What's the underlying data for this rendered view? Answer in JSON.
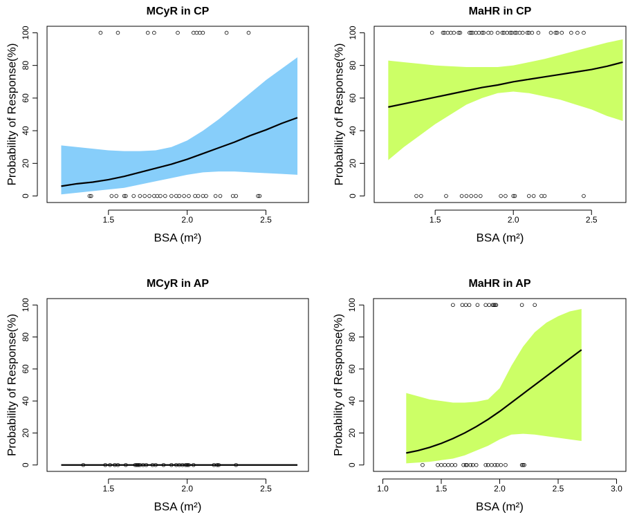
{
  "chart_data": [
    {
      "type": "line",
      "title": "MCyR in CP",
      "xlabel": "BSA (m²)",
      "ylabel": "Probability of Response(%)",
      "xlim": [
        1.11,
        2.77
      ],
      "ylim": [
        -4,
        104
      ],
      "xticks": [
        1.5,
        {
          "value": 2,
          "label": "2.0"
        },
        2.5
      ],
      "yticks": [
        0,
        20,
        40,
        60,
        80,
        100
      ],
      "band_color": "#87cefa",
      "line_color": "#000000",
      "x": [
        1.2,
        1.3,
        1.4,
        1.5,
        1.6,
        1.7,
        1.8,
        1.9,
        2.0,
        2.1,
        2.2,
        2.3,
        2.4,
        2.5,
        2.6,
        2.7
      ],
      "fit": [
        6,
        7.5,
        8.5,
        10,
        12,
        14.5,
        17,
        19.5,
        22.5,
        26,
        29.5,
        33,
        37,
        40.5,
        44.5,
        48
      ],
      "lower": [
        1,
        2,
        3,
        4,
        5,
        7,
        9,
        11,
        13,
        14.5,
        15,
        15,
        14.5,
        14,
        13.5,
        13
      ],
      "upper": [
        31,
        30,
        29,
        28,
        27.5,
        27.5,
        28,
        30,
        34,
        40,
        47,
        55,
        63,
        71,
        78,
        85
      ],
      "points_x": [
        1.45,
        1.56,
        1.75,
        1.79,
        1.94,
        2.04,
        2.06,
        2.08,
        2.1,
        2.25,
        2.39,
        1.38,
        1.39,
        1.52,
        1.55,
        1.6,
        1.61,
        1.66,
        1.7,
        1.73,
        1.76,
        1.79,
        1.81,
        1.83,
        1.86,
        1.9,
        1.93,
        1.95,
        1.98,
        2.01,
        2.05,
        2.07,
        2.1,
        2.12,
        2.18,
        2.21,
        2.29,
        2.31,
        2.45,
        2.46
      ],
      "points_y": [
        100,
        100,
        100,
        100,
        100,
        100,
        100,
        100,
        100,
        100,
        100,
        0,
        0,
        0,
        0,
        0,
        0,
        0,
        0,
        0,
        0,
        0,
        0,
        0,
        0,
        0,
        0,
        0,
        0,
        0,
        0,
        0,
        0,
        0,
        0,
        0,
        0,
        0,
        0,
        0
      ]
    },
    {
      "type": "line",
      "title": "MaHR in CP",
      "xlabel": "BSA (m²)",
      "ylabel": "Probability of Response(%)",
      "xlim": [
        1.11,
        2.72
      ],
      "ylim": [
        -4,
        104
      ],
      "xticks": [
        1.5,
        {
          "value": 2,
          "label": "2.0"
        },
        2.5
      ],
      "yticks": [
        0,
        20,
        40,
        60,
        80,
        100
      ],
      "band_color": "#ccff66",
      "line_color": "#000000",
      "x": [
        1.2,
        1.3,
        1.4,
        1.5,
        1.6,
        1.7,
        1.8,
        1.9,
        2.0,
        2.1,
        2.2,
        2.3,
        2.4,
        2.5,
        2.6,
        2.7
      ],
      "fit": [
        54.5,
        56.5,
        58.5,
        60.5,
        62.5,
        64.5,
        66.5,
        68,
        70,
        71.5,
        73,
        74.5,
        76,
        77.5,
        79.5,
        82
      ],
      "lower": [
        22,
        30,
        37,
        44,
        50,
        56,
        60,
        63,
        64,
        63,
        61,
        59,
        56,
        53,
        49,
        46
      ],
      "upper": [
        83,
        82,
        81,
        80,
        79.5,
        79,
        79,
        79,
        80,
        82,
        84,
        86.5,
        89,
        91.5,
        94,
        96
      ],
      "points_x": [
        1.48,
        1.55,
        1.56,
        1.58,
        1.6,
        1.62,
        1.65,
        1.66,
        1.72,
        1.73,
        1.74,
        1.76,
        1.78,
        1.8,
        1.81,
        1.84,
        1.86,
        1.9,
        1.93,
        1.94,
        1.96,
        1.98,
        1.99,
        2.01,
        2.02,
        2.04,
        2.06,
        2.09,
        2.1,
        2.12,
        2.16,
        2.24,
        2.27,
        2.28,
        2.31,
        2.37,
        2.41,
        2.45,
        1.38,
        1.41,
        1.57,
        1.67,
        1.7,
        1.73,
        1.76,
        1.79,
        1.92,
        1.95,
        2.0,
        2.01,
        2.1,
        2.13,
        2.18,
        2.2,
        2.45
      ],
      "points_y": [
        100,
        100,
        100,
        100,
        100,
        100,
        100,
        100,
        100,
        100,
        100,
        100,
        100,
        100,
        100,
        100,
        100,
        100,
        100,
        100,
        100,
        100,
        100,
        100,
        100,
        100,
        100,
        100,
        100,
        100,
        100,
        100,
        100,
        100,
        100,
        100,
        100,
        100,
        0,
        0,
        0,
        0,
        0,
        0,
        0,
        0,
        0,
        0,
        0,
        0,
        0,
        0,
        0,
        0,
        0
      ]
    },
    {
      "type": "line",
      "title": "MCyR in AP",
      "xlabel": "BSA (m²)",
      "ylabel": "Probability of Response(%)",
      "xlim": [
        1.11,
        2.77
      ],
      "ylim": [
        -4,
        104
      ],
      "xticks": [
        1.5,
        {
          "value": 2,
          "label": "2.0"
        },
        2.5
      ],
      "yticks": [
        0,
        20,
        40,
        60,
        80,
        100
      ],
      "line_color": "#000000",
      "x": [
        1.2,
        1.3,
        1.4,
        1.5,
        1.6,
        1.7,
        1.8,
        1.9,
        2.0,
        2.1,
        2.2,
        2.3,
        2.4,
        2.5,
        2.6,
        2.7
      ],
      "fit": [
        0,
        0,
        0,
        0,
        0,
        0,
        0,
        0,
        0,
        0,
        0,
        0,
        0,
        0,
        0,
        0
      ],
      "points_x": [
        1.34,
        1.48,
        1.51,
        1.54,
        1.56,
        1.61,
        1.67,
        1.68,
        1.69,
        1.7,
        1.72,
        1.74,
        1.78,
        1.8,
        1.85,
        1.9,
        1.93,
        1.95,
        1.97,
        1.99,
        2.0,
        2.01,
        2.04,
        2.17,
        2.19,
        2.2,
        2.31
      ],
      "points_y": [
        0,
        0,
        0,
        0,
        0,
        0,
        0,
        0,
        0,
        0,
        0,
        0,
        0,
        0,
        0,
        0,
        0,
        0,
        0,
        0,
        0,
        0,
        0,
        0,
        0,
        0,
        0
      ]
    },
    {
      "type": "line",
      "title": "MaHR in AP",
      "xlabel": "BSA (m²)",
      "ylabel": "Probability of Response(%)",
      "xlim": [
        0.92,
        3.08
      ],
      "ylim": [
        -4,
        104
      ],
      "xticks": [
        {
          "value": 1,
          "label": "1.0"
        },
        1.5,
        {
          "value": 2,
          "label": "2.0"
        },
        2.5,
        {
          "value": 3,
          "label": "3.0"
        }
      ],
      "yticks": [
        0,
        20,
        40,
        60,
        80,
        100
      ],
      "band_color": "#ccff66",
      "line_color": "#000000",
      "x": [
        1.2,
        1.3,
        1.4,
        1.5,
        1.6,
        1.7,
        1.8,
        1.9,
        2.0,
        2.1,
        2.2,
        2.3,
        2.4,
        2.5,
        2.6,
        2.7
      ],
      "fit": [
        7.5,
        9,
        11,
        13.5,
        16.5,
        20,
        24,
        28.5,
        33.5,
        39,
        44.5,
        50,
        55.5,
        61,
        66.5,
        72
      ],
      "lower": [
        1,
        1.5,
        2,
        3,
        4,
        6,
        9,
        12,
        16,
        19,
        19.5,
        19,
        18,
        17,
        16,
        15
      ],
      "upper": [
        45,
        43,
        41,
        40,
        39,
        39,
        39.5,
        41,
        48,
        62,
        74,
        83,
        89,
        93,
        96,
        97.5
      ],
      "points_x": [
        1.6,
        1.68,
        1.71,
        1.74,
        1.81,
        1.88,
        1.91,
        1.94,
        1.95,
        1.96,
        1.97,
        2.19,
        2.3,
        1.34,
        1.47,
        1.5,
        1.53,
        1.56,
        1.59,
        1.62,
        1.69,
        1.71,
        1.72,
        1.75,
        1.77,
        1.8,
        1.88,
        1.9,
        1.93,
        1.96,
        1.98,
        2.01,
        2.05,
        2.19,
        2.2,
        2.21
      ],
      "points_y": [
        100,
        100,
        100,
        100,
        100,
        100,
        100,
        100,
        100,
        100,
        100,
        100,
        100,
        0,
        0,
        0,
        0,
        0,
        0,
        0,
        0,
        0,
        0,
        0,
        0,
        0,
        0,
        0,
        0,
        0,
        0,
        0,
        0,
        0,
        0,
        0
      ]
    }
  ]
}
